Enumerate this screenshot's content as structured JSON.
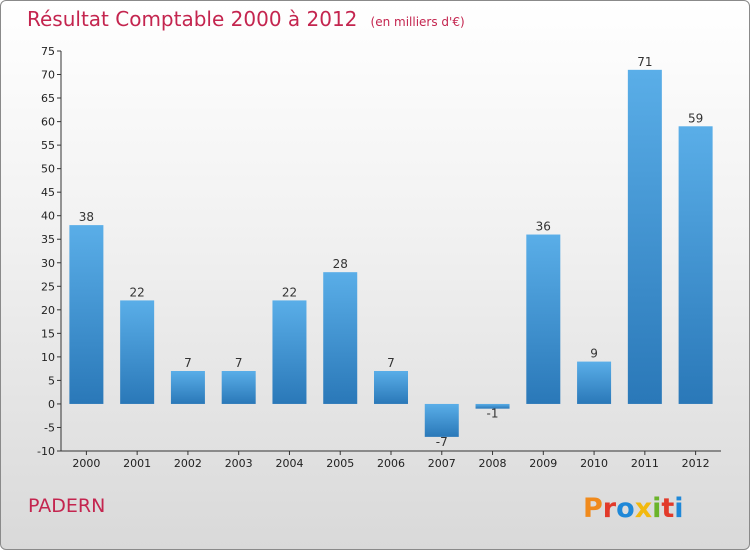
{
  "header": {
    "title": "Résultat Comptable 2000 à 2012",
    "subtitle": "(en milliers d'€)"
  },
  "footer": {
    "commune": "PADERN",
    "logo_text": "Proxiti",
    "logo_colors": [
      "#f08a1c",
      "#e23a2a",
      "#1f88d8",
      "#f2b90f",
      "#6bb42a",
      "#e23a2a",
      "#1f88d8"
    ]
  },
  "colors": {
    "bar_top": "#5aaee8",
    "bar_bottom": "#2a78b8",
    "title": "#c4254f"
  },
  "chart_data": {
    "type": "bar",
    "categories": [
      "2000",
      "2001",
      "2002",
      "2003",
      "2004",
      "2005",
      "2006",
      "2007",
      "2008",
      "2009",
      "2010",
      "2011",
      "2012"
    ],
    "values": [
      38,
      22,
      7,
      7,
      22,
      28,
      7,
      -7,
      -1,
      36,
      9,
      71,
      59
    ],
    "data_labels": [
      "38",
      "22",
      "7",
      "7",
      "22",
      "28",
      "7",
      "-7",
      "-1",
      "36",
      "9",
      "71",
      "59"
    ],
    "title": "Résultat Comptable 2000 à 2012",
    "xlabel": "",
    "ylabel": "",
    "ylim": [
      -10,
      75
    ],
    "yticks": [
      -10,
      -5,
      0,
      5,
      10,
      15,
      20,
      25,
      30,
      35,
      40,
      45,
      50,
      55,
      60,
      65,
      70,
      75
    ],
    "grid": false,
    "legend": "none"
  }
}
